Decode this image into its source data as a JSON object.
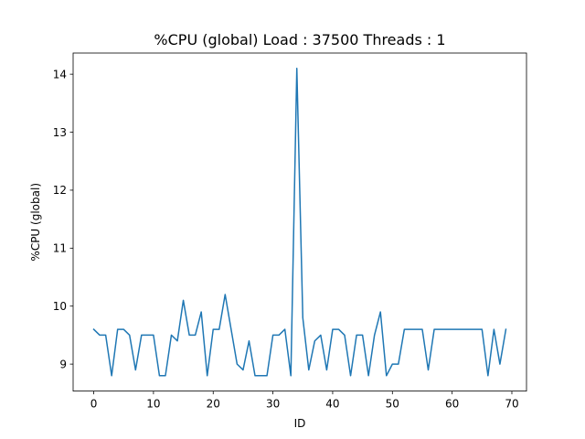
{
  "chart_data": {
    "type": "line",
    "title": "%CPU (global) Load : 37500 Threads : 1",
    "xlabel": "ID",
    "ylabel": "%CPU (global)",
    "xlim": [
      -3.45,
      72.45
    ],
    "ylim": [
      8.535,
      14.365
    ],
    "xticks": [
      0,
      10,
      20,
      30,
      40,
      50,
      60,
      70
    ],
    "yticks": [
      9,
      10,
      11,
      12,
      13,
      14
    ],
    "grid": false,
    "legend": "none",
    "series": [
      {
        "color": "#1f77b4",
        "x": [
          0,
          1,
          2,
          3,
          4,
          5,
          6,
          7,
          8,
          9,
          10,
          11,
          12,
          13,
          14,
          15,
          16,
          17,
          18,
          19,
          20,
          21,
          22,
          23,
          24,
          25,
          26,
          27,
          28,
          29,
          30,
          31,
          32,
          33,
          34,
          35,
          36,
          37,
          38,
          39,
          40,
          41,
          42,
          43,
          44,
          45,
          46,
          47,
          48,
          49,
          50,
          51,
          52,
          53,
          54,
          55,
          56,
          57,
          58,
          59,
          60,
          61,
          62,
          63,
          64,
          65,
          66,
          67,
          68,
          69
        ],
        "values": [
          9.6,
          9.5,
          9.5,
          8.8,
          9.6,
          9.6,
          9.5,
          8.9,
          9.5,
          9.5,
          9.5,
          8.8,
          8.8,
          9.5,
          9.4,
          10.1,
          9.5,
          9.5,
          9.9,
          8.8,
          9.6,
          9.6,
          10.2,
          9.6,
          9.0,
          8.9,
          9.4,
          8.8,
          8.8,
          8.8,
          9.5,
          9.5,
          9.6,
          8.8,
          14.1,
          9.8,
          8.9,
          9.4,
          9.5,
          8.9,
          9.6,
          9.6,
          9.5,
          8.8,
          9.5,
          9.5,
          8.8,
          9.5,
          9.9,
          8.8,
          9.0,
          9.0,
          9.6,
          9.6,
          9.6,
          9.6,
          8.9,
          9.6,
          9.6,
          9.6,
          9.6,
          9.6,
          9.6,
          9.6,
          9.6,
          9.6,
          8.8,
          9.6,
          9.0,
          9.6
        ]
      }
    ]
  }
}
